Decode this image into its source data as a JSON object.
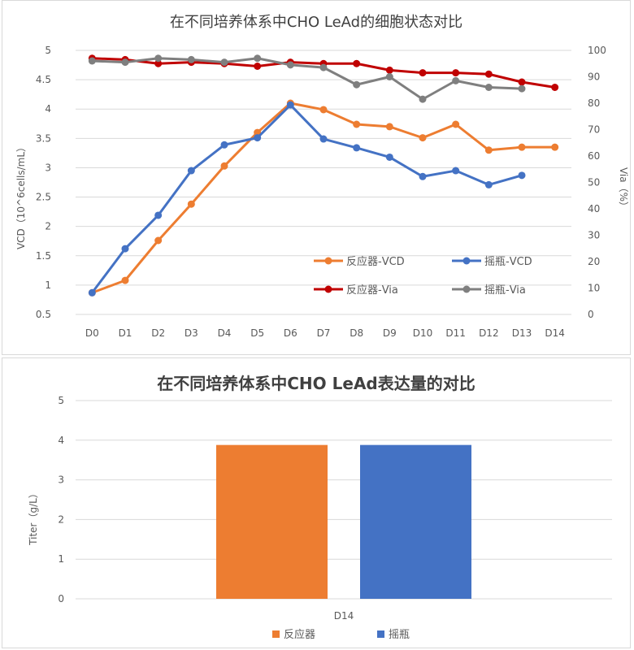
{
  "chart_data": [
    {
      "type": "line",
      "title": "在不同培养体系中CHO LeAd的细胞状态对比",
      "xlabel": "",
      "ylabel": "VCD（10^6cells/mL）",
      "y2label": "Via（%）",
      "categories": [
        "D0",
        "D1",
        "D2",
        "D3",
        "D4",
        "D5",
        "D6",
        "D7",
        "D8",
        "D9",
        "D10",
        "D11",
        "D12",
        "D13",
        "D14"
      ],
      "ylim": [
        0.5,
        5
      ],
      "yticks": [
        "0.5",
        "1",
        "1.5",
        "2",
        "2.5",
        "3",
        "3.5",
        "4",
        "4.5",
        "5"
      ],
      "y2lim": [
        0,
        100
      ],
      "y2ticks": [
        "0",
        "10",
        "20",
        "30",
        "40",
        "50",
        "60",
        "70",
        "80",
        "90",
        "100"
      ],
      "grid": "horizontal",
      "legend_position": "inside-bottom-right",
      "series": [
        {
          "name": "反应器-VCD",
          "axis": "left",
          "color": "#ED7D31",
          "values": [
            0.87,
            1.08,
            1.76,
            2.38,
            3.03,
            3.6,
            4.1,
            3.99,
            3.74,
            3.7,
            3.51,
            3.74,
            3.3,
            3.35,
            3.35
          ]
        },
        {
          "name": "摇瓶-VCD",
          "axis": "left",
          "color": "#4472C4",
          "values": [
            0.87,
            1.62,
            2.19,
            2.95,
            3.39,
            3.51,
            4.07,
            3.49,
            3.34,
            3.18,
            2.85,
            2.95,
            2.71,
            2.87,
            null
          ]
        },
        {
          "name": "反应器-Via",
          "axis": "right",
          "color": "#C00000",
          "values": [
            97,
            96.5,
            95,
            95.5,
            95,
            94,
            95.5,
            95,
            95,
            92.5,
            91.5,
            91.5,
            91,
            88,
            86
          ]
        },
        {
          "name": "摇瓶-Via",
          "axis": "right",
          "color": "#7F7F7F",
          "values": [
            96,
            95.5,
            97,
            96.5,
            95.5,
            97,
            94.5,
            93.5,
            87,
            90,
            81.5,
            88.5,
            86,
            85.5,
            null
          ]
        }
      ]
    },
    {
      "type": "bar",
      "title": "在不同培养体系中CHO LeAd表达量的对比",
      "xlabel": "",
      "ylabel": "Titer（g/L）",
      "categories": [
        "D14"
      ],
      "ylim": [
        0,
        5
      ],
      "yticks": [
        "0",
        "1",
        "2",
        "3",
        "4",
        "5"
      ],
      "grid": "horizontal",
      "legend_position": "bottom",
      "series": [
        {
          "name": "反应器",
          "color": "#ED7D31",
          "values": [
            3.88
          ]
        },
        {
          "name": "摇瓶",
          "color": "#4472C4",
          "values": [
            3.88
          ]
        }
      ]
    }
  ]
}
